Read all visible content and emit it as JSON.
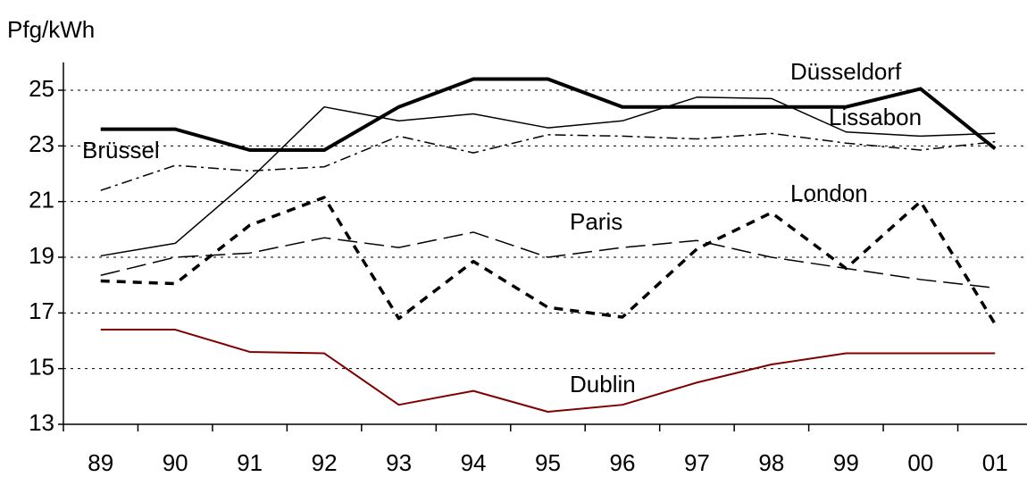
{
  "chart_data": {
    "type": "line",
    "y_label": "Pfg/kWh",
    "categories": [
      "89",
      "90",
      "91",
      "92",
      "93",
      "94",
      "95",
      "96",
      "97",
      "98",
      "99",
      "00",
      "01"
    ],
    "series": [
      {
        "name": "Düsseldorf",
        "color": "#000000",
        "width": 4,
        "dash": "none",
        "values": [
          23.6,
          23.6,
          22.85,
          22.85,
          24.4,
          25.4,
          25.4,
          24.4,
          24.4,
          24.4,
          24.4,
          25.05,
          22.9
        ]
      },
      {
        "name": "Lissabon",
        "color": "#000000",
        "width": 1.5,
        "dash": "none",
        "values": [
          19.05,
          19.5,
          21.8,
          24.4,
          23.9,
          24.15,
          23.65,
          23.9,
          24.75,
          24.7,
          23.5,
          23.35,
          23.45
        ]
      },
      {
        "name": "Brüssel",
        "color": "#000000",
        "width": 1.5,
        "dash": "12 5 3 5",
        "values": [
          21.4,
          22.3,
          22.1,
          22.25,
          23.35,
          22.75,
          23.4,
          23.35,
          23.25,
          23.45,
          23.1,
          22.85,
          23.15
        ]
      },
      {
        "name": "London",
        "color": "#000000",
        "width": 3.5,
        "dash": "10 8",
        "values": [
          18.15,
          18.05,
          20.15,
          21.15,
          16.8,
          18.85,
          17.2,
          16.85,
          19.3,
          20.6,
          18.6,
          21.0,
          16.6
        ]
      },
      {
        "name": "Paris",
        "color": "#000000",
        "width": 1.5,
        "dash": "22 8",
        "values": [
          18.35,
          19.0,
          19.15,
          19.7,
          19.35,
          19.9,
          19.0,
          19.35,
          19.6,
          19.0,
          18.6,
          18.2,
          17.9
        ]
      },
      {
        "name": "Dublin",
        "color": "#800000",
        "width": 2,
        "dash": "none",
        "values": [
          16.4,
          16.4,
          15.6,
          15.55,
          13.7,
          14.2,
          13.45,
          13.7,
          14.5,
          15.15,
          15.55,
          15.55,
          15.55
        ]
      }
    ],
    "ylim": [
      13,
      26
    ],
    "yticks": [
      13,
      15,
      17,
      19,
      21,
      23,
      25
    ],
    "grid": true
  }
}
